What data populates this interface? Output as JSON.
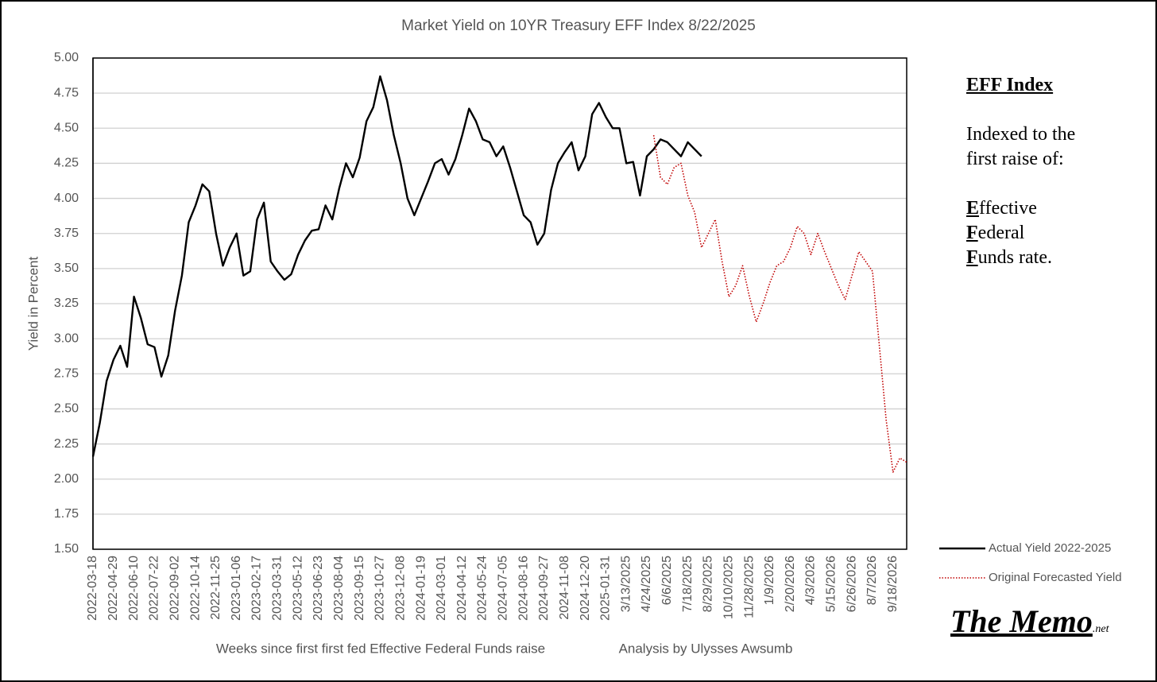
{
  "chart_data": {
    "type": "line",
    "title": "Market Yield on 10YR Treasury EFF Index 8/22/2025",
    "ylabel": "Yield in Percent",
    "xlabel": "Weeks since first first fed Effective Federal Funds raise",
    "credit": "Analysis by Ulysses Awsumb",
    "ylim": [
      1.5,
      5.0
    ],
    "yticks": [
      {
        "value": 1.5,
        "label": "1.50"
      },
      {
        "value": 1.75,
        "label": "1.75"
      },
      {
        "value": 2.0,
        "label": "2.00"
      },
      {
        "value": 2.25,
        "label": "2.25"
      },
      {
        "value": 2.5,
        "label": "2.50"
      },
      {
        "value": 2.75,
        "label": "2.75"
      },
      {
        "value": 3.0,
        "label": "3.00"
      },
      {
        "value": 3.25,
        "label": "3.25"
      },
      {
        "value": 3.5,
        "label": "3.50"
      },
      {
        "value": 3.75,
        "label": "3.75"
      },
      {
        "value": 4.0,
        "label": "4.00"
      },
      {
        "value": 4.25,
        "label": "4.25"
      },
      {
        "value": 4.5,
        "label": "4.50"
      },
      {
        "value": 4.75,
        "label": "4.75"
      },
      {
        "value": 5.0,
        "label": "5.00"
      }
    ],
    "grid": true,
    "legend": "bottom-right",
    "categories": [
      "2022-03-18",
      null,
      null,
      "2022-04-29",
      null,
      null,
      "2022-06-10",
      null,
      null,
      "2022-07-22",
      null,
      null,
      "2022-09-02",
      null,
      null,
      "2022-10-14",
      null,
      null,
      "2022-11-25",
      null,
      null,
      "2023-01-06",
      null,
      null,
      "2023-02-17",
      null,
      null,
      "2023-03-31",
      null,
      null,
      "2023-05-12",
      null,
      null,
      "2023-06-23",
      null,
      null,
      "2023-08-04",
      null,
      null,
      "2023-09-15",
      null,
      null,
      "2023-10-27",
      null,
      null,
      "2023-12-08",
      null,
      null,
      "2024-01-19",
      null,
      null,
      "2024-03-01",
      null,
      null,
      "2024-04-12",
      null,
      null,
      "2024-05-24",
      null,
      null,
      "2024-07-05",
      null,
      null,
      "2024-08-16",
      null,
      null,
      "2024-09-27",
      null,
      null,
      "2024-11-08",
      null,
      null,
      "2024-12-20",
      null,
      null,
      "2025-01-31",
      null,
      null,
      "3/13/2025",
      null,
      null,
      "4/24/2025",
      null,
      null,
      "6/6/2025",
      null,
      null,
      "7/18/2025",
      null,
      null,
      "8/29/2025",
      null,
      null,
      "10/10/2025",
      null,
      null,
      "11/28/2025",
      null,
      null,
      "1/9/2026",
      null,
      null,
      "2/20/2026",
      null,
      null,
      "4/3/2026",
      null,
      null,
      "5/15/2026",
      null,
      null,
      "6/26/2026",
      null,
      null,
      "8/7/2026",
      null,
      null,
      "9/18/2026",
      null,
      null
    ],
    "series": [
      {
        "name": "Actual Yield 2022-2025",
        "color": "#000000",
        "style": "solid",
        "values": [
          2.16,
          2.4,
          2.7,
          2.85,
          2.95,
          2.8,
          3.3,
          3.15,
          2.96,
          2.94,
          2.73,
          2.88,
          3.2,
          3.45,
          3.83,
          3.95,
          4.1,
          4.05,
          3.75,
          3.52,
          3.65,
          3.75,
          3.45,
          3.48,
          3.85,
          3.97,
          3.55,
          3.48,
          3.42,
          3.46,
          3.6,
          3.7,
          3.77,
          3.78,
          3.95,
          3.85,
          4.07,
          4.25,
          4.15,
          4.29,
          4.55,
          4.65,
          4.87,
          4.7,
          4.45,
          4.25,
          4.0,
          3.88,
          4.0,
          4.12,
          4.25,
          4.28,
          4.17,
          4.28,
          4.45,
          4.64,
          4.55,
          4.42,
          4.4,
          4.3,
          4.37,
          4.22,
          4.05,
          3.88,
          3.83,
          3.67,
          3.75,
          4.06,
          4.25,
          4.33,
          4.4,
          4.2,
          4.3,
          4.6,
          4.68,
          4.58,
          4.5,
          4.5,
          4.25,
          4.26,
          4.02,
          4.3,
          4.35,
          4.42,
          4.4,
          4.35,
          4.3,
          4.4,
          4.35,
          4.3,
          null,
          null,
          null,
          null,
          null,
          null,
          null,
          null,
          null,
          null,
          null,
          null,
          null,
          null,
          null,
          null,
          null,
          null,
          null,
          null,
          null,
          null,
          null,
          null,
          null,
          null,
          null,
          null,
          null,
          null
        ]
      },
      {
        "name": "Original Forecasted Yield",
        "color": "#c00000",
        "style": "dotted",
        "values": [
          null,
          null,
          null,
          null,
          null,
          null,
          null,
          null,
          null,
          null,
          null,
          null,
          null,
          null,
          null,
          null,
          null,
          null,
          null,
          null,
          null,
          null,
          null,
          null,
          null,
          null,
          null,
          null,
          null,
          null,
          null,
          null,
          null,
          null,
          null,
          null,
          null,
          null,
          null,
          null,
          null,
          null,
          null,
          null,
          null,
          null,
          null,
          null,
          null,
          null,
          null,
          null,
          null,
          null,
          null,
          null,
          null,
          null,
          null,
          null,
          null,
          null,
          null,
          null,
          null,
          null,
          null,
          null,
          null,
          null,
          null,
          null,
          null,
          null,
          null,
          null,
          null,
          null,
          null,
          null,
          null,
          null,
          4.45,
          4.15,
          4.1,
          4.22,
          4.25,
          4.02,
          3.9,
          3.65,
          3.75,
          3.85,
          3.55,
          3.3,
          3.38,
          3.52,
          3.3,
          3.12,
          3.25,
          3.4,
          3.52,
          3.55,
          3.65,
          3.8,
          3.75,
          3.6,
          3.75,
          3.62,
          3.5,
          3.38,
          3.28,
          3.45,
          3.62,
          3.55,
          3.48,
          2.95,
          2.42,
          2.05,
          2.15,
          2.12
        ]
      }
    ]
  },
  "note": {
    "title": "EFF Index",
    "text": "Indexed to the first raise of:",
    "terms": [
      "Effective",
      "Federal",
      "Funds rate."
    ]
  },
  "logo": {
    "name": "The Memo",
    "suffix": ".net"
  }
}
